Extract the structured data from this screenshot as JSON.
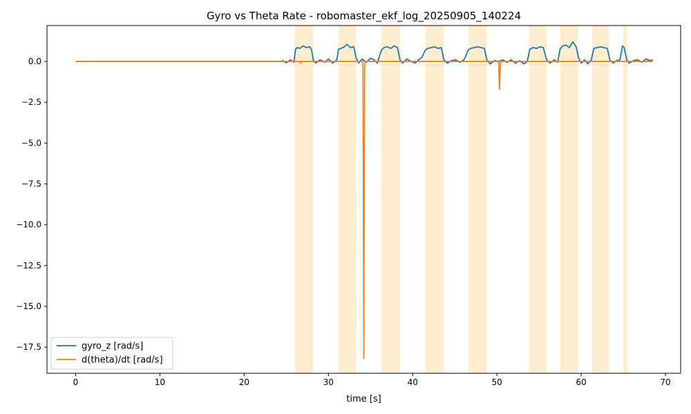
{
  "chart_data": {
    "type": "line",
    "title": "Gyro vs Theta Rate - robomaster_ekf_log_20250905_140224",
    "xlabel": "time [s]",
    "ylabel": "",
    "xlim": [
      -3.4,
      71.8
    ],
    "ylim": [
      -19.1,
      2.2
    ],
    "x_ticks": [
      0,
      10,
      20,
      30,
      40,
      50,
      60,
      70
    ],
    "y_ticks": [
      0.0,
      -2.5,
      -5.0,
      -7.5,
      -10.0,
      -12.5,
      -15.0,
      -17.5
    ],
    "x_tick_labels": [
      "0",
      "10",
      "20",
      "30",
      "40",
      "50",
      "60",
      "70"
    ],
    "y_tick_labels": [
      "0.0",
      "−2.5",
      "−5.0",
      "−7.5",
      "−10.0",
      "−12.5",
      "−15.0",
      "−17.5"
    ],
    "grid": false,
    "legend_position": "lower-left",
    "shaded_regions": [
      {
        "x0": 26.0,
        "x1": 28.2
      },
      {
        "x0": 31.2,
        "x1": 33.3
      },
      {
        "x0": 36.3,
        "x1": 38.5
      },
      {
        "x0": 41.5,
        "x1": 43.7
      },
      {
        "x0": 46.6,
        "x1": 48.8
      },
      {
        "x0": 53.8,
        "x1": 55.9
      },
      {
        "x0": 57.5,
        "x1": 59.6
      },
      {
        "x0": 61.3,
        "x1": 63.3
      },
      {
        "x0": 65.0,
        "x1": 65.5
      }
    ],
    "shade_color": "#fde9c6",
    "series": [
      {
        "name": "gyro_z [rad/s]",
        "color": "#1f77b4",
        "x": [
          0,
          24.5,
          24.6,
          25.0,
          25.5,
          25.9,
          26.1,
          26.3,
          26.6,
          27.0,
          27.4,
          27.8,
          28.0,
          28.2,
          28.5,
          29.0,
          29.6,
          30.0,
          30.5,
          31.0,
          31.2,
          31.5,
          31.9,
          32.2,
          32.6,
          33.0,
          33.3,
          33.6,
          34.0,
          34.5,
          35.0,
          35.4,
          35.8,
          36.3,
          36.6,
          37.0,
          37.4,
          37.8,
          38.2,
          38.5,
          38.8,
          39.3,
          39.8,
          40.3,
          40.7,
          41.1,
          41.5,
          41.8,
          42.2,
          42.6,
          43.0,
          43.4,
          43.7,
          44.1,
          44.6,
          45.1,
          45.6,
          46.1,
          46.6,
          46.9,
          47.3,
          47.7,
          48.1,
          48.5,
          48.8,
          49.2,
          49.7,
          50.2,
          50.7,
          51.2,
          51.7,
          52.2,
          52.7,
          53.2,
          53.6,
          53.9,
          54.3,
          54.7,
          55.1,
          55.5,
          55.9,
          56.3,
          56.8,
          57.2,
          57.5,
          57.8,
          58.2,
          58.6,
          59.0,
          59.4,
          59.7,
          60.0,
          60.4,
          60.8,
          61.2,
          61.5,
          61.9,
          62.3,
          62.7,
          63.1,
          63.4,
          63.8,
          64.2,
          64.6,
          64.9,
          65.1,
          65.4,
          65.7,
          66.2,
          66.7,
          67.2,
          67.7,
          68.2,
          68.5
        ],
        "y": [
          0.0,
          0.0,
          0.05,
          -0.08,
          0.1,
          -0.05,
          0.75,
          0.85,
          0.8,
          0.95,
          0.85,
          0.9,
          0.7,
          0.1,
          -0.1,
          0.1,
          -0.05,
          0.15,
          -0.1,
          0.1,
          0.75,
          0.8,
          0.9,
          1.05,
          0.85,
          0.9,
          0.2,
          -0.1,
          0.15,
          -0.05,
          0.2,
          0.1,
          -0.1,
          0.7,
          0.85,
          0.9,
          0.8,
          0.95,
          0.85,
          0.1,
          -0.1,
          0.15,
          0.0,
          -0.1,
          0.1,
          0.25,
          0.7,
          0.8,
          0.85,
          0.9,
          0.8,
          0.85,
          0.1,
          -0.1,
          0.05,
          0.1,
          -0.05,
          0.1,
          0.7,
          0.8,
          0.85,
          0.9,
          0.85,
          0.8,
          0.1,
          -0.15,
          0.05,
          0.0,
          0.1,
          -0.05,
          0.1,
          -0.1,
          0.05,
          -0.15,
          0.0,
          0.75,
          0.85,
          0.8,
          0.9,
          0.85,
          0.1,
          -0.1,
          0.1,
          -0.05,
          0.75,
          0.95,
          1.0,
          0.85,
          1.2,
          0.9,
          0.2,
          -0.1,
          0.1,
          -0.15,
          0.1,
          0.8,
          0.85,
          0.9,
          0.85,
          0.8,
          0.1,
          -0.1,
          0.05,
          0.1,
          0.95,
          0.85,
          0.1,
          -0.1,
          0.05,
          0.1,
          -0.05,
          0.15,
          0.05,
          0.1
        ]
      },
      {
        "name": "d(theta)/dt [rad/s]",
        "color": "#ff7f0e",
        "x": [
          0,
          26.6,
          26.7,
          26.8,
          34.1,
          34.2,
          34.3,
          34.4,
          50.2,
          50.3,
          50.4,
          50.5,
          68.5
        ],
        "y": [
          0.0,
          0.0,
          -0.1,
          0.0,
          0.0,
          -18.2,
          -0.3,
          0.0,
          0.0,
          -1.7,
          -0.1,
          0.0,
          0.0
        ]
      }
    ]
  }
}
